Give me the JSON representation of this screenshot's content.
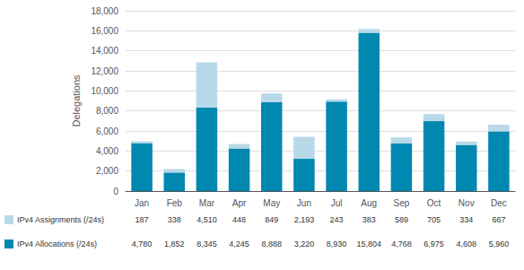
{
  "chart_data": {
    "type": "bar",
    "stacked": true,
    "ylabel": "Delegations",
    "categories": [
      "Jan",
      "Feb",
      "Mar",
      "Apr",
      "May",
      "Jun",
      "Jul",
      "Aug",
      "Sep",
      "Oct",
      "Nov",
      "Dec"
    ],
    "series": [
      {
        "name": "IPv4 Allocations (/24s)",
        "color": "#0088b0",
        "values": [
          4780,
          1852,
          8345,
          4245,
          8888,
          3220,
          8930,
          15804,
          4768,
          6975,
          4608,
          5960
        ],
        "value_labels": [
          "4,780",
          "1,852",
          "8,345",
          "4,245",
          "8,888",
          "3,220",
          "8,930",
          "15,804",
          "4,768",
          "6,975",
          "4,608",
          "5,960"
        ]
      },
      {
        "name": "IPv4 Assignments (/24s)",
        "color": "#b8d9e8",
        "values": [
          187,
          338,
          4510,
          448,
          849,
          2193,
          243,
          383,
          589,
          705,
          334,
          667
        ],
        "value_labels": [
          "187",
          "338",
          "4,510",
          "448",
          "849",
          "2,193",
          "243",
          "383",
          "589",
          "705",
          "334",
          "667"
        ]
      }
    ],
    "ylim": [
      0,
      18000
    ],
    "yticks": [
      0,
      {
        "value": 2000,
        "label": "2,000"
      },
      {
        "value": 4000,
        "label": "4,000"
      },
      {
        "value": 6000,
        "label": "6,000"
      },
      {
        "value": 8000,
        "label": "8,000"
      },
      {
        "value": 10000,
        "label": "10,000"
      },
      {
        "value": 12000,
        "label": "12,000"
      },
      {
        "value": 14000,
        "label": "14,000"
      },
      {
        "value": 16000,
        "label": "16,000"
      },
      {
        "value": 18000,
        "label": "18,000"
      }
    ],
    "grid": true
  }
}
